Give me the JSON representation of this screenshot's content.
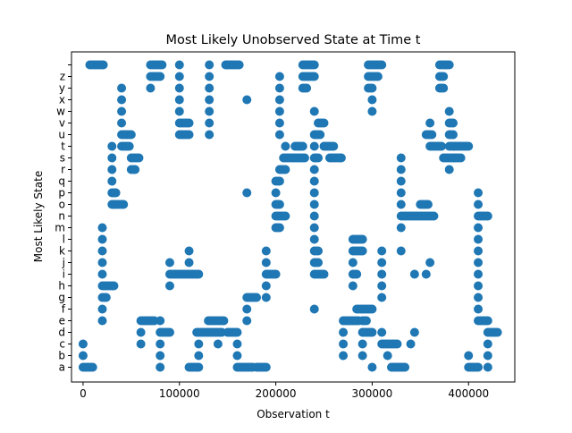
{
  "chart_data": {
    "type": "scatter",
    "title": "Most Likely Unobserved State at Time t",
    "xlabel": "Observation t",
    "ylabel": "Most Likely State",
    "xlim": [
      -12000,
      448000
    ],
    "xticks": [
      0,
      100000,
      200000,
      300000,
      400000
    ],
    "xtick_labels": [
      "0",
      "100000",
      "200000",
      "300000",
      "400000"
    ],
    "states": [
      "a",
      "b",
      "c",
      "d",
      "e",
      "f",
      "g",
      "h",
      "i",
      "j",
      "k",
      "l",
      "m",
      "n",
      "o",
      "p",
      "q",
      "r",
      "s",
      "t",
      "u",
      "v",
      "w",
      "x",
      "y",
      "z",
      "_"
    ],
    "state_labels": [
      "a",
      "b",
      "c",
      "d",
      "e",
      "f",
      "g",
      "h",
      "i",
      "j",
      "k",
      "l",
      "m",
      "n",
      "o",
      "p",
      "q",
      "r",
      "s",
      "t",
      "u",
      "v",
      "w",
      "x",
      "y",
      "z",
      ""
    ],
    "grid": false,
    "marker_color": "#1f77b4",
    "runs": [
      {
        "state": "_",
        "x": [
          [
            7000,
            22000
          ],
          [
            70000,
            82000
          ],
          [
            100000,
            100000
          ],
          [
            131000,
            131000
          ],
          [
            148000,
            162000
          ],
          [
            228000,
            240000
          ],
          [
            296000,
            310000
          ],
          [
            370000,
            380000
          ]
        ]
      },
      {
        "state": "z",
        "x": [
          [
            70000,
            80000
          ],
          [
            100000,
            100000
          ],
          [
            131000,
            131000
          ],
          [
            204000,
            204000
          ],
          [
            228000,
            240000
          ],
          [
            296000,
            306000
          ],
          [
            370000,
            374000
          ]
        ]
      },
      {
        "state": "y",
        "x": [
          [
            40000,
            40000
          ],
          [
            70000,
            70000
          ],
          [
            100000,
            100000
          ],
          [
            131000,
            131000
          ],
          [
            204000,
            204000
          ],
          [
            228000,
            232000
          ],
          [
            296000,
            300000
          ],
          [
            370000,
            374000
          ]
        ]
      },
      {
        "state": "x",
        "x": [
          [
            40000,
            40000
          ],
          [
            100000,
            100000
          ],
          [
            131000,
            131000
          ],
          [
            170000,
            170000
          ],
          [
            204000,
            204000
          ],
          [
            300000,
            300000
          ]
        ]
      },
      {
        "state": "w",
        "x": [
          [
            40000,
            40000
          ],
          [
            100000,
            100000
          ],
          [
            131000,
            131000
          ],
          [
            204000,
            204000
          ],
          [
            240000,
            240000
          ],
          [
            300000,
            300000
          ],
          [
            380000,
            380000
          ]
        ]
      },
      {
        "state": "v",
        "x": [
          [
            40000,
            40000
          ],
          [
            100000,
            110000
          ],
          [
            131000,
            131000
          ],
          [
            204000,
            204000
          ],
          [
            244000,
            250000
          ],
          [
            360000,
            360000
          ],
          [
            380000,
            384000
          ]
        ]
      },
      {
        "state": "u",
        "x": [
          [
            40000,
            50000
          ],
          [
            100000,
            110000
          ],
          [
            131000,
            131000
          ],
          [
            204000,
            204000
          ],
          [
            240000,
            246000
          ],
          [
            356000,
            362000
          ],
          [
            380000,
            384000
          ]
        ]
      },
      {
        "state": "t",
        "x": [
          [
            30000,
            30000
          ],
          [
            40000,
            48000
          ],
          [
            210000,
            210000
          ],
          [
            220000,
            228000
          ],
          [
            240000,
            240000
          ],
          [
            250000,
            260000
          ],
          [
            360000,
            372000
          ],
          [
            380000,
            400000
          ]
        ]
      },
      {
        "state": "s",
        "x": [
          [
            30000,
            30000
          ],
          [
            50000,
            58000
          ],
          [
            208000,
            230000
          ],
          [
            240000,
            244000
          ],
          [
            256000,
            268000
          ],
          [
            330000,
            330000
          ],
          [
            374000,
            392000
          ]
        ]
      },
      {
        "state": "r",
        "x": [
          [
            30000,
            30000
          ],
          [
            50000,
            54000
          ],
          [
            204000,
            210000
          ],
          [
            240000,
            240000
          ],
          [
            330000,
            330000
          ],
          [
            380000,
            380000
          ]
        ]
      },
      {
        "state": "q",
        "x": [
          [
            30000,
            30000
          ],
          [
            200000,
            204000
          ],
          [
            240000,
            240000
          ],
          [
            330000,
            330000
          ]
        ]
      },
      {
        "state": "p",
        "x": [
          [
            30000,
            34000
          ],
          [
            170000,
            170000
          ],
          [
            200000,
            200000
          ],
          [
            240000,
            240000
          ],
          [
            330000,
            330000
          ],
          [
            410000,
            410000
          ]
        ]
      },
      {
        "state": "o",
        "x": [
          [
            30000,
            42000
          ],
          [
            200000,
            204000
          ],
          [
            240000,
            240000
          ],
          [
            330000,
            330000
          ],
          [
            350000,
            358000
          ],
          [
            410000,
            410000
          ]
        ]
      },
      {
        "state": "n",
        "x": [
          [
            200000,
            210000
          ],
          [
            240000,
            240000
          ],
          [
            330000,
            364000
          ],
          [
            410000,
            420000
          ]
        ]
      },
      {
        "state": "m",
        "x": [
          [
            20000,
            20000
          ],
          [
            200000,
            204000
          ],
          [
            240000,
            240000
          ],
          [
            330000,
            330000
          ],
          [
            410000,
            410000
          ]
        ]
      },
      {
        "state": "l",
        "x": [
          [
            20000,
            20000
          ],
          [
            240000,
            240000
          ],
          [
            280000,
            290000
          ],
          [
            410000,
            410000
          ]
        ]
      },
      {
        "state": "k",
        "x": [
          [
            20000,
            20000
          ],
          [
            110000,
            110000
          ],
          [
            190000,
            190000
          ],
          [
            240000,
            244000
          ],
          [
            280000,
            290000
          ],
          [
            310000,
            310000
          ],
          [
            330000,
            330000
          ],
          [
            410000,
            410000
          ]
        ]
      },
      {
        "state": "j",
        "x": [
          [
            20000,
            20000
          ],
          [
            90000,
            90000
          ],
          [
            110000,
            110000
          ],
          [
            190000,
            190000
          ],
          [
            240000,
            244000
          ],
          [
            280000,
            280000
          ],
          [
            310000,
            310000
          ],
          [
            360000,
            360000
          ],
          [
            410000,
            410000
          ]
        ]
      },
      {
        "state": "i",
        "x": [
          [
            20000,
            20000
          ],
          [
            90000,
            120000
          ],
          [
            190000,
            200000
          ],
          [
            240000,
            250000
          ],
          [
            280000,
            284000
          ],
          [
            310000,
            310000
          ],
          [
            344000,
            344000
          ],
          [
            356000,
            356000
          ],
          [
            410000,
            410000
          ]
        ]
      },
      {
        "state": "h",
        "x": [
          [
            20000,
            32000
          ],
          [
            90000,
            90000
          ],
          [
            190000,
            190000
          ],
          [
            280000,
            280000
          ],
          [
            310000,
            310000
          ],
          [
            410000,
            410000
          ]
        ]
      },
      {
        "state": "g",
        "x": [
          [
            20000,
            24000
          ],
          [
            170000,
            180000
          ],
          [
            190000,
            190000
          ],
          [
            310000,
            310000
          ],
          [
            410000,
            410000
          ]
        ]
      },
      {
        "state": "f",
        "x": [
          [
            20000,
            20000
          ],
          [
            170000,
            170000
          ],
          [
            240000,
            240000
          ],
          [
            284000,
            300000
          ],
          [
            410000,
            410000
          ]
        ]
      },
      {
        "state": "e",
        "x": [
          [
            20000,
            20000
          ],
          [
            60000,
            74000
          ],
          [
            80000,
            80000
          ],
          [
            130000,
            146000
          ],
          [
            170000,
            170000
          ],
          [
            270000,
            286000
          ],
          [
            290000,
            294000
          ],
          [
            410000,
            420000
          ]
        ]
      },
      {
        "state": "d",
        "x": [
          [
            60000,
            60000
          ],
          [
            80000,
            90000
          ],
          [
            118000,
            144000
          ],
          [
            150000,
            160000
          ],
          [
            270000,
            270000
          ],
          [
            290000,
            300000
          ],
          [
            310000,
            310000
          ],
          [
            344000,
            344000
          ],
          [
            420000,
            430000
          ]
        ]
      },
      {
        "state": "c",
        "x": [
          [
            0,
            0
          ],
          [
            60000,
            60000
          ],
          [
            80000,
            80000
          ],
          [
            120000,
            120000
          ],
          [
            140000,
            140000
          ],
          [
            160000,
            160000
          ],
          [
            270000,
            270000
          ],
          [
            290000,
            290000
          ],
          [
            310000,
            326000
          ],
          [
            340000,
            340000
          ],
          [
            420000,
            420000
          ]
        ]
      },
      {
        "state": "b",
        "x": [
          [
            0,
            0
          ],
          [
            80000,
            80000
          ],
          [
            120000,
            120000
          ],
          [
            160000,
            160000
          ],
          [
            270000,
            270000
          ],
          [
            290000,
            290000
          ],
          [
            316000,
            316000
          ],
          [
            400000,
            400000
          ],
          [
            420000,
            420000
          ]
        ]
      },
      {
        "state": "a",
        "x": [
          [
            0,
            10000
          ],
          [
            80000,
            80000
          ],
          [
            110000,
            120000
          ],
          [
            160000,
            176000
          ],
          [
            180000,
            190000
          ],
          [
            300000,
            300000
          ],
          [
            320000,
            334000
          ],
          [
            400000,
            410000
          ],
          [
            420000,
            420000
          ]
        ]
      }
    ]
  }
}
